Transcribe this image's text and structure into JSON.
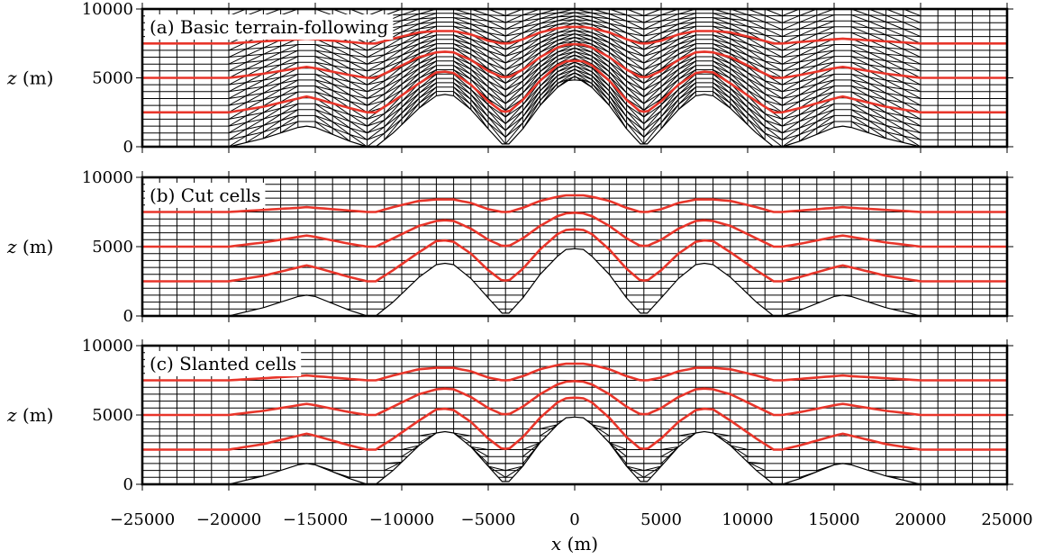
{
  "chart_data": {
    "type": "line",
    "shared_xaxis": {
      "label_var": "x",
      "label_unit": "(m)",
      "xlim": [
        -25000,
        25000
      ],
      "ticks": [
        "−25000",
        "−20000",
        "−15000",
        "−10000",
        "−5000",
        "0",
        "5000",
        "10000",
        "15000",
        "20000",
        "25000"
      ],
      "tick_values": [
        -25000,
        -20000,
        -15000,
        -10000,
        -5000,
        0,
        5000,
        10000,
        15000,
        20000,
        25000
      ]
    },
    "panels": [
      {
        "id": "a",
        "title": "(a) Basic terrain-following",
        "grid": "terrain-following",
        "ylabel_var": "z",
        "ylabel_unit": "(m)",
        "ylim": [
          0,
          10000
        ],
        "yticks": [
          "0",
          "5000",
          "10000"
        ],
        "ytick_values": [
          0,
          5000,
          10000
        ]
      },
      {
        "id": "b",
        "title": "(b) Cut cells",
        "grid": "cut-cells",
        "ylabel_var": "z",
        "ylabel_unit": "(m)",
        "ylim": [
          0,
          10000
        ],
        "yticks": [
          "0",
          "5000",
          "10000"
        ],
        "ytick_values": [
          0,
          5000,
          10000
        ]
      },
      {
        "id": "c",
        "title": "(c) Slanted cells",
        "grid": "slanted-cells",
        "ylabel_var": "z",
        "ylabel_unit": "(m)",
        "ylim": [
          0,
          10000
        ],
        "yticks": [
          "0",
          "5000",
          "10000"
        ],
        "ytick_values": [
          0,
          5000,
          10000
        ]
      }
    ],
    "terrain": {
      "x": [
        -25000,
        -20000,
        -18000,
        -16000,
        -15500,
        -15000,
        -13000,
        -12000,
        -11500,
        -10500,
        -9000,
        -8000,
        -7500,
        -7000,
        -6000,
        -5000,
        -4200,
        -3800,
        -3000,
        -2000,
        -1000,
        -500,
        0,
        500,
        1000,
        2000,
        3000,
        3800,
        4200,
        5000,
        6000,
        7000,
        7500,
        8000,
        9000,
        10500,
        11500,
        12000,
        13000,
        15000,
        15500,
        16000,
        18000,
        20000,
        25000
      ],
      "z": [
        0,
        0,
        600,
        1400,
        1500,
        1400,
        400,
        0,
        0,
        1000,
        2800,
        3700,
        3800,
        3700,
        2700,
        1300,
        200,
        200,
        1300,
        3000,
        4300,
        4800,
        4850,
        4800,
        4300,
        3000,
        1300,
        200,
        200,
        1300,
        2700,
        3700,
        3800,
        3700,
        2800,
        1000,
        0,
        0,
        400,
        1400,
        1500,
        1400,
        600,
        0,
        0
      ]
    },
    "contours": [
      {
        "x": [
          -25000,
          -20000,
          -18000,
          -16000,
          -15500,
          -15000,
          -13000,
          -12000,
          -11500,
          -10500,
          -9000,
          -8000,
          -7500,
          -7000,
          -6000,
          -5000,
          -4200,
          -3800,
          -3000,
          -2000,
          -1000,
          -500,
          0,
          500,
          1000,
          2000,
          3000,
          3800,
          4200,
          5000,
          6000,
          7000,
          7500,
          8000,
          9000,
          10500,
          11500,
          12000,
          13000,
          15000,
          15500,
          16000,
          18000,
          20000,
          25000
        ],
        "z": [
          2500,
          2500,
          2900,
          3500,
          3650,
          3500,
          2800,
          2500,
          2500,
          3300,
          4600,
          5400,
          5450,
          5350,
          4500,
          3300,
          2550,
          2550,
          3400,
          4800,
          5900,
          6200,
          6250,
          6200,
          5900,
          4800,
          3400,
          2550,
          2550,
          3300,
          4500,
          5350,
          5450,
          5400,
          4600,
          3300,
          2500,
          2500,
          2800,
          3500,
          3650,
          3500,
          2900,
          2500,
          2500
        ]
      },
      {
        "x": [
          -25000,
          -20000,
          -18000,
          -16000,
          -15500,
          -15000,
          -13000,
          -12000,
          -11500,
          -10500,
          -9000,
          -8000,
          -7500,
          -7000,
          -6000,
          -5000,
          -4200,
          -3800,
          -3000,
          -2000,
          -1000,
          -500,
          0,
          500,
          1000,
          2000,
          3000,
          3800,
          4200,
          5000,
          6000,
          7000,
          7500,
          8000,
          9000,
          10500,
          11500,
          12000,
          13000,
          15000,
          15500,
          16000,
          18000,
          20000,
          25000
        ],
        "z": [
          5000,
          5000,
          5300,
          5700,
          5800,
          5700,
          5200,
          5000,
          5000,
          5600,
          6500,
          6850,
          6900,
          6850,
          6300,
          5500,
          5050,
          5050,
          5600,
          6500,
          7200,
          7400,
          7450,
          7400,
          7200,
          6500,
          5600,
          5050,
          5050,
          5500,
          6300,
          6850,
          6900,
          6850,
          6500,
          5600,
          5000,
          5000,
          5200,
          5700,
          5800,
          5700,
          5300,
          5000,
          5000
        ]
      },
      {
        "x": [
          -25000,
          -20000,
          -18000,
          -16000,
          -15500,
          -15000,
          -13000,
          -12000,
          -11500,
          -10500,
          -9000,
          -8000,
          -7500,
          -7000,
          -6000,
          -5000,
          -4200,
          -3800,
          -3000,
          -2000,
          -1000,
          -500,
          0,
          500,
          1000,
          2000,
          3000,
          3800,
          4200,
          5000,
          6000,
          7000,
          7500,
          8000,
          9000,
          10500,
          11500,
          12000,
          13000,
          15000,
          15500,
          16000,
          18000,
          20000,
          25000
        ],
        "z": [
          7500,
          7500,
          7650,
          7800,
          7850,
          7800,
          7600,
          7500,
          7500,
          7850,
          8300,
          8400,
          8400,
          8400,
          8150,
          7700,
          7500,
          7500,
          7800,
          8300,
          8600,
          8700,
          8700,
          8700,
          8600,
          8300,
          7800,
          7500,
          7500,
          7700,
          8150,
          8400,
          8400,
          8400,
          8300,
          7850,
          7500,
          7500,
          7600,
          7800,
          7850,
          7800,
          7650,
          7500,
          7500
        ]
      }
    ],
    "colors": {
      "contour": "#e8352a",
      "grid": "#000000",
      "background": "#ffffff"
    }
  }
}
